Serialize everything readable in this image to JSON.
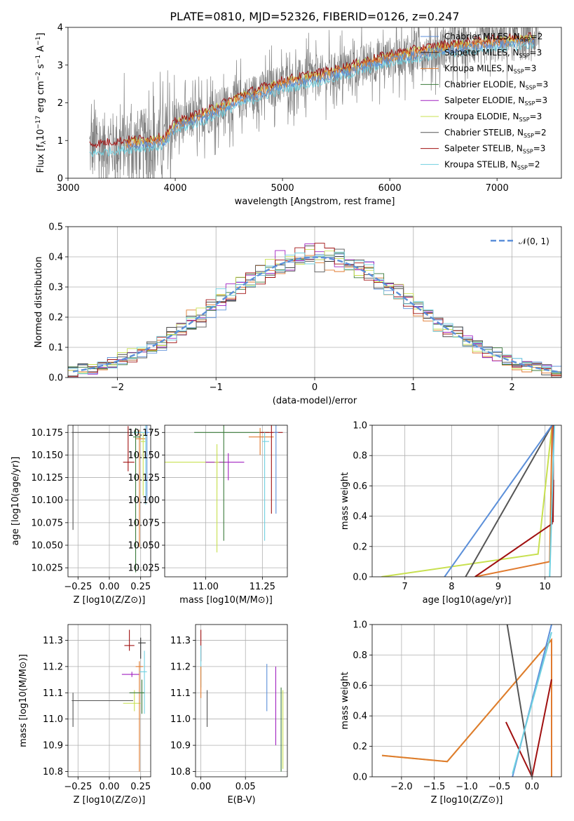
{
  "title": "PLATE=0810, MJD=52326, FIBERID=0126, z=0.247",
  "colors": {
    "Chabrier MILES": "#5b8fd9",
    "Salpeter MILES": "#333333",
    "Kroupa MILES": "#e07a2e",
    "Chabrier ELODIE": "#3a7a3a",
    "Salpeter ELODIE": "#a020c0",
    "Kroupa ELODIE": "#c8e050",
    "Chabrier STELIB": "#555555",
    "Salpeter STELIB": "#a01010",
    "Kroupa STELIB": "#70d0e0",
    "data": "#808080",
    "gauss": "#5b8fd9"
  },
  "chart_data": [
    {
      "id": "spectrum",
      "type": "line",
      "title": "PLATE=0810, MJD=52326, FIBERID=0126, z=0.247",
      "xlabel": "wavelength [Angstrom, rest frame]",
      "ylabel": "Flux [f_λ 10^-17 erg cm^-2 s^-1 A^-1]",
      "xlim": [
        3000,
        7600
      ],
      "ylim": [
        0,
        4
      ],
      "xticks": [
        "3000",
        "4000",
        "5000",
        "6000",
        "7000"
      ],
      "yticks": [
        "0",
        "1",
        "2",
        "3",
        "4"
      ],
      "data_range": [
        3200,
        7400
      ],
      "legend": [
        {
          "name": "Chabrier MILES",
          "nssp": "2"
        },
        {
          "name": "Salpeter MILES",
          "nssp": "3"
        },
        {
          "name": "Kroupa MILES",
          "nssp": "3"
        },
        {
          "name": "Chabrier ELODIE",
          "nssp": "3"
        },
        {
          "name": "Salpeter ELODIE",
          "nssp": "3"
        },
        {
          "name": "Kroupa ELODIE",
          "nssp": "3"
        },
        {
          "name": "Chabrier STELIB",
          "nssp": "2"
        },
        {
          "name": "Salpeter STELIB",
          "nssp": "3"
        },
        {
          "name": "Kroupa STELIB",
          "nssp": "2"
        }
      ],
      "continuum_points": [
        [
          3200,
          0.8
        ],
        [
          3500,
          0.9
        ],
        [
          3900,
          1.0
        ],
        [
          4000,
          1.4
        ],
        [
          4300,
          1.7
        ],
        [
          4600,
          2.1
        ],
        [
          5000,
          2.5
        ],
        [
          5500,
          2.8
        ],
        [
          6000,
          3.2
        ],
        [
          6500,
          3.45
        ],
        [
          7000,
          3.6
        ],
        [
          7400,
          3.7
        ]
      ],
      "legend_position": "top-right"
    },
    {
      "id": "residuals",
      "type": "histogram",
      "xlabel": "(data-model)/error",
      "ylabel": "Normed distribution",
      "xlim": [
        -2.5,
        2.5
      ],
      "ylim": [
        0,
        0.5
      ],
      "xticks": [
        "−2",
        "−1",
        "0",
        "1",
        "2"
      ],
      "yticks": [
        "0.0",
        "0.1",
        "0.2",
        "0.3",
        "0.4",
        "0.5"
      ],
      "legend": [
        {
          "name": "𝒩(0, 1)",
          "style": "dashed"
        }
      ],
      "legend_position": "top-right",
      "bin_width": 0.1
    },
    {
      "id": "z-age",
      "type": "errorbar",
      "xlabel": "Z [log10(Z/Z⊙)]",
      "ylabel": "age  [log10(age/yr)]",
      "xlim": [
        -0.33,
        0.33
      ],
      "ylim": [
        10.015,
        10.183
      ],
      "xticks": [
        "−0.25",
        "0.00",
        "0.25"
      ],
      "yticks": [
        "10.025",
        "10.050",
        "10.075",
        "10.100",
        "10.125",
        "10.150",
        "10.175"
      ]
    },
    {
      "id": "mass-age",
      "type": "errorbar",
      "xlabel": "mass [log10(M/M⊙)]",
      "xlim": [
        10.82,
        11.36
      ],
      "ylim": [
        10.015,
        10.183
      ],
      "xticks": [
        "11.00",
        "11.25"
      ],
      "yticks": [
        "10.025",
        "10.050",
        "10.075",
        "10.100",
        "10.125",
        "10.150",
        "10.175"
      ]
    },
    {
      "id": "age-weight",
      "type": "line",
      "xlabel": "age  [log10(age/yr)]",
      "ylabel": "mass weight",
      "xlim": [
        6.3,
        10.35
      ],
      "ylim": [
        0,
        1
      ],
      "xticks": [
        "7",
        "8",
        "9",
        "10"
      ],
      "yticks": [
        "0.0",
        "0.2",
        "0.4",
        "0.6",
        "0.8",
        "1.0"
      ]
    },
    {
      "id": "z-mass",
      "type": "errorbar",
      "xlabel": "Z [log10(Z/Z⊙)]",
      "ylabel": "mass [log10(M/M⊙)]",
      "xlim": [
        -0.33,
        0.33
      ],
      "ylim": [
        10.78,
        11.36
      ],
      "xticks": [
        "−0.25",
        "0.00",
        "0.25"
      ],
      "yticks": [
        "10.8",
        "10.9",
        "11.0",
        "11.1",
        "11.2",
        "11.3"
      ]
    },
    {
      "id": "ebv-mass",
      "type": "errorbar",
      "xlabel": "E(B-V)",
      "xlim": [
        -0.006,
        0.097
      ],
      "ylim": [
        10.78,
        11.36
      ],
      "xticks": [
        "0.00",
        "0.05"
      ],
      "yticks": [
        "10.8",
        "10.9",
        "11.0",
        "11.1",
        "11.2",
        "11.3"
      ]
    },
    {
      "id": "z-weight",
      "type": "line",
      "xlabel": "Z [log10(Z/Z⊙)]",
      "ylabel": "mass weight",
      "xlim": [
        -2.45,
        0.45
      ],
      "ylim": [
        0,
        1
      ],
      "xticks": [
        "−2.0",
        "−1.5",
        "−1.0",
        "−0.5",
        "0.0"
      ],
      "yticks": [
        "0.0",
        "0.2",
        "0.4",
        "0.6",
        "0.8",
        "1.0"
      ]
    }
  ]
}
